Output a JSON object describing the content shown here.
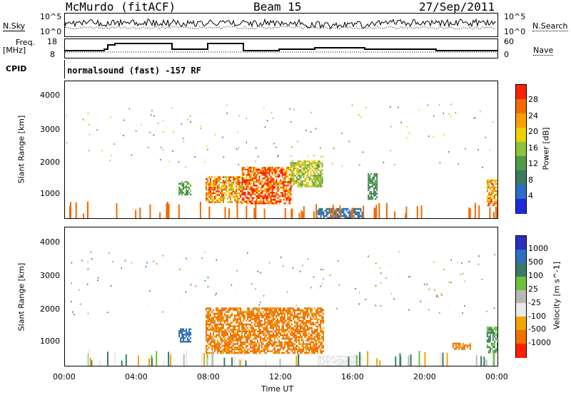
{
  "header": {
    "station": "McMurdo (fitACF)",
    "beam": "Beam 15",
    "date": "27/Sep/2011"
  },
  "side_labels": {
    "nsky": "N.Sky",
    "freq_line1": "Freq.",
    "freq_line2": "[MHz]",
    "cpid": "CPID",
    "nsearch": "N.Search",
    "nave": "Nave"
  },
  "top_ticks": {
    "nsky_left": [
      "10^5",
      "10^0"
    ],
    "nsky_right": [
      "10^5",
      "10^0"
    ],
    "freq_left": [
      "18",
      "8"
    ],
    "nave_right": [
      "60",
      "0"
    ]
  },
  "cpid_text": "normalsound (fast) -157 RF",
  "colors": {
    "power_bar": [
      "#1f2bd8",
      "#2a6ec9",
      "#3d7a5f",
      "#4f9b47",
      "#8bc43d",
      "#f0d000",
      "#f7a000",
      "#f36a00",
      "#ff2000"
    ],
    "velocity_bar": [
      "#2a2fc0",
      "#2f6fc0",
      "#397b66",
      "#6fc03a",
      "#b8b8b8",
      "#e9e9e9",
      "#f2a500",
      "#f07000",
      "#ff2000"
    ]
  },
  "chart_data": [
    {
      "type": "heatmap",
      "title": "",
      "xlabel": "",
      "ylabel": "Slant Range [km]",
      "xlim": [
        "00:00",
        "00:00"
      ],
      "ylim": [
        180,
        4500
      ],
      "yticks": [
        "4000",
        "3000",
        "2000",
        "1000"
      ],
      "colorbar": {
        "label": "Power [dB]",
        "ticks": [
          "28",
          "24",
          "20",
          "16",
          "12",
          "8",
          "4"
        ],
        "range": [
          0,
          30
        ]
      },
      "features": [
        {
          "x_hours": [
            6.3,
            7.0
          ],
          "range_km": [
            950,
            1350
          ],
          "value": 12
        },
        {
          "x_hours": [
            7.8,
            9.8
          ],
          "range_km": [
            700,
            1500
          ],
          "value": 22
        },
        {
          "x_hours": [
            9.8,
            12.5
          ],
          "range_km": [
            650,
            1800
          ],
          "value": 26
        },
        {
          "x_hours": [
            12.5,
            14.3
          ],
          "range_km": [
            1200,
            2000
          ],
          "value": 16
        },
        {
          "x_hours": [
            14.0,
            16.5
          ],
          "range_km": [
            200,
            500
          ],
          "value": 6
        },
        {
          "x_hours": [
            16.8,
            17.3
          ],
          "range_km": [
            800,
            1600
          ],
          "value": 10
        },
        {
          "x_hours": [
            23.4,
            24.0
          ],
          "range_km": [
            600,
            1400
          ],
          "value": 22
        }
      ]
    },
    {
      "type": "heatmap",
      "title": "",
      "xlabel": "Time UT",
      "ylabel": "Slant Range [km]",
      "xticks": [
        "00:00",
        "04:00",
        "08:00",
        "12:00",
        "16:00",
        "20:00",
        "00:00"
      ],
      "ylim": [
        180,
        4500
      ],
      "yticks": [
        "4000",
        "3000",
        "2000",
        "1000"
      ],
      "colorbar": {
        "label": "Velocity [m s^-1]",
        "ticks": [
          "1000",
          "500",
          "100",
          "25",
          "-25",
          "-100",
          "-500",
          "-1000"
        ],
        "range": [
          -1000,
          1000
        ]
      },
      "features": [
        {
          "x_hours": [
            6.3,
            7.0
          ],
          "range_km": [
            950,
            1350
          ],
          "value": 300
        },
        {
          "x_hours": [
            7.8,
            14.3
          ],
          "range_km": [
            600,
            2000
          ],
          "value": -300
        },
        {
          "x_hours": [
            14.0,
            16.5
          ],
          "range_km": [
            200,
            500
          ],
          "value": -60
        },
        {
          "x_hours": [
            21.5,
            22.5
          ],
          "range_km": [
            700,
            900
          ],
          "value": -300
        },
        {
          "x_hours": [
            23.4,
            24.0
          ],
          "range_km": [
            600,
            1400
          ],
          "value": 100
        }
      ]
    }
  ]
}
